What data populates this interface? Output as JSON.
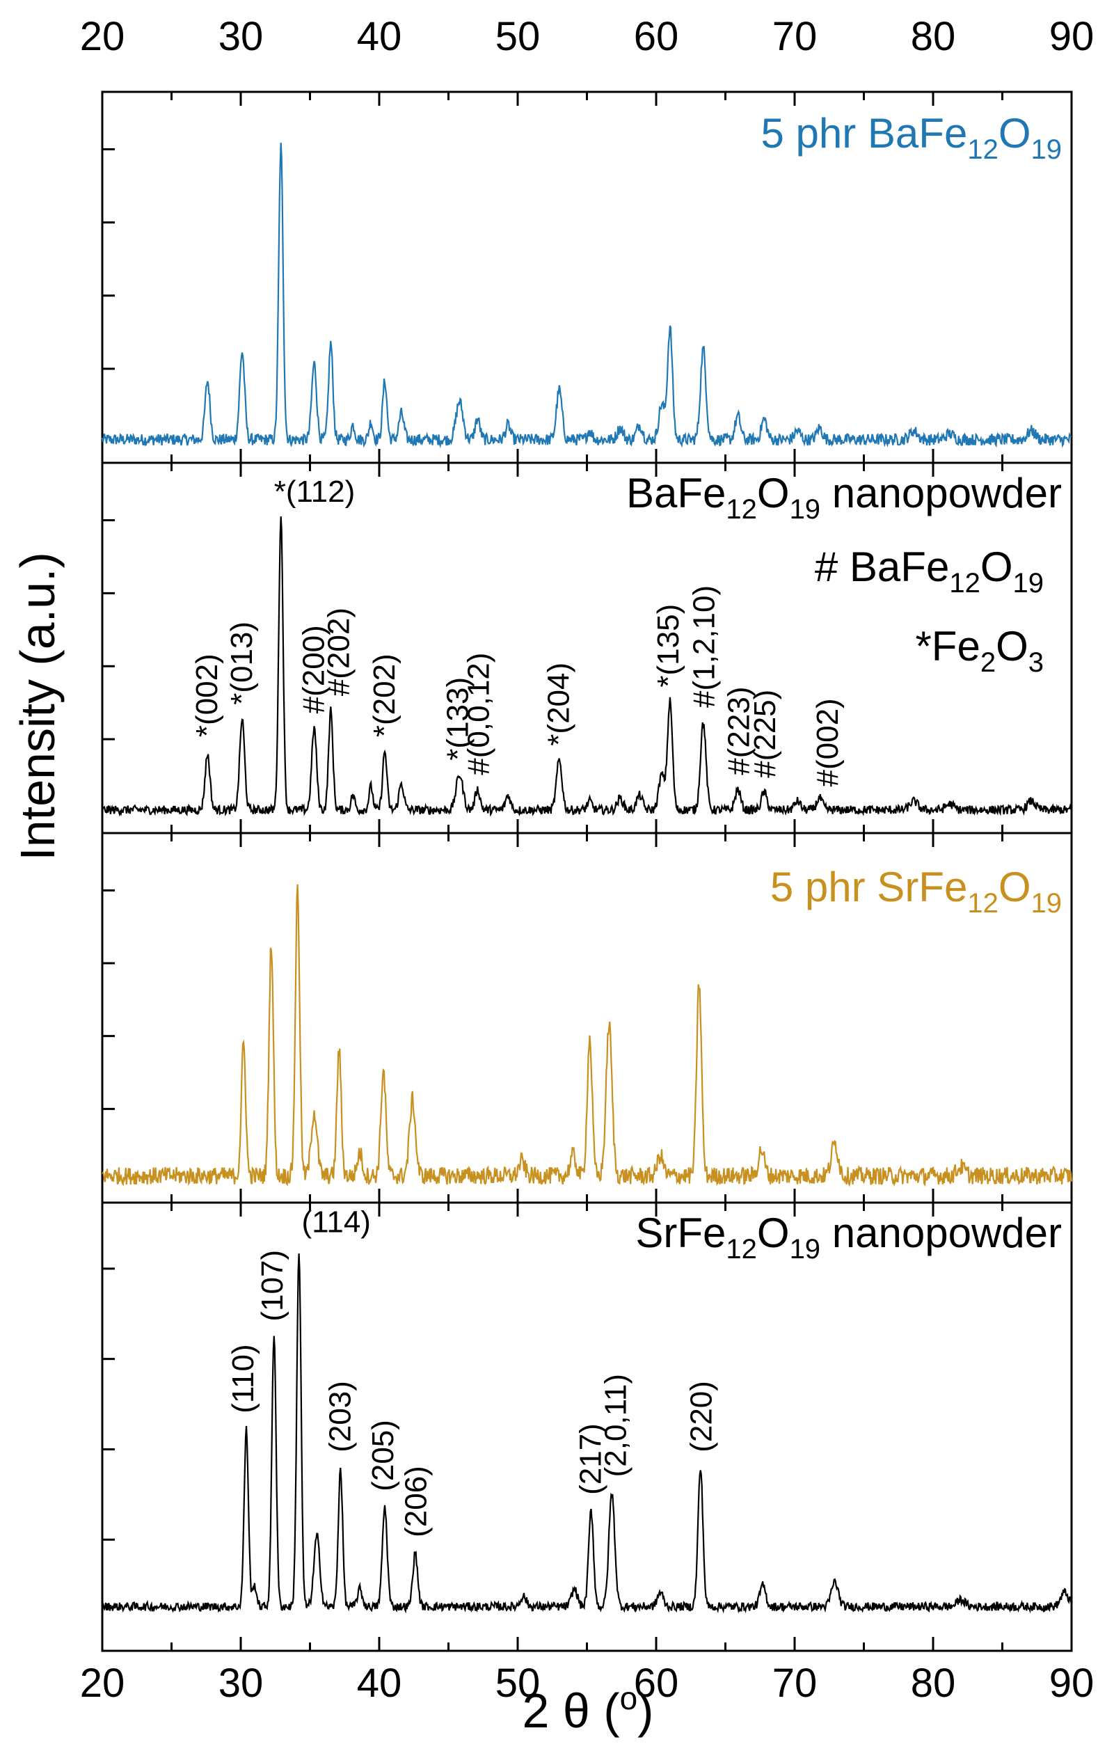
{
  "chart_data": {
    "type": "line",
    "x_axis": {
      "label": "2 θ (°)",
      "label_text": "2 θ (",
      "label_unit": "o",
      "label_close": ")",
      "range": [
        20,
        90
      ],
      "ticks": [
        20,
        30,
        40,
        50,
        60,
        70,
        80,
        90
      ]
    },
    "y_axis": {
      "label": "Intensity (a.u.)"
    },
    "panels": [
      {
        "name": "5 phr BaFe12O19",
        "label_parts": [
          "5 phr BaFe",
          "12",
          "O",
          "19"
        ],
        "color": "#1f77b4",
        "baseline": 0.04,
        "noise": 0.02,
        "peaks": [
          {
            "x": 27.6,
            "h": 0.2,
            "w": 0.25
          },
          {
            "x": 30.1,
            "h": 0.3,
            "w": 0.25
          },
          {
            "x": 32.9,
            "h": 1.0,
            "w": 0.22
          },
          {
            "x": 35.3,
            "h": 0.26,
            "w": 0.25
          },
          {
            "x": 36.5,
            "h": 0.33,
            "w": 0.22
          },
          {
            "x": 38.1,
            "h": 0.05,
            "w": 0.2
          },
          {
            "x": 39.4,
            "h": 0.06,
            "w": 0.2
          },
          {
            "x": 40.4,
            "h": 0.2,
            "w": 0.22
          },
          {
            "x": 41.6,
            "h": 0.09,
            "w": 0.25
          },
          {
            "x": 45.8,
            "h": 0.13,
            "w": 0.35
          },
          {
            "x": 47.1,
            "h": 0.07,
            "w": 0.25
          },
          {
            "x": 49.3,
            "h": 0.05,
            "w": 0.25
          },
          {
            "x": 53.0,
            "h": 0.17,
            "w": 0.28
          },
          {
            "x": 55.2,
            "h": 0.03,
            "w": 0.25
          },
          {
            "x": 57.4,
            "h": 0.04,
            "w": 0.3
          },
          {
            "x": 58.8,
            "h": 0.05,
            "w": 0.3
          },
          {
            "x": 60.4,
            "h": 0.12,
            "w": 0.3
          },
          {
            "x": 61.0,
            "h": 0.38,
            "w": 0.25
          },
          {
            "x": 63.4,
            "h": 0.31,
            "w": 0.28
          },
          {
            "x": 65.9,
            "h": 0.08,
            "w": 0.28
          },
          {
            "x": 67.8,
            "h": 0.07,
            "w": 0.28
          },
          {
            "x": 70.2,
            "h": 0.03,
            "w": 0.3
          },
          {
            "x": 71.8,
            "h": 0.04,
            "w": 0.3
          },
          {
            "x": 78.6,
            "h": 0.03,
            "w": 0.4
          },
          {
            "x": 81.2,
            "h": 0.02,
            "w": 0.4
          },
          {
            "x": 87.1,
            "h": 0.03,
            "w": 0.4
          }
        ],
        "annotations": []
      },
      {
        "name": "BaFe12O19 nanopowder",
        "label_parts": [
          "BaFe",
          "12",
          "O",
          "19",
          " nanopowder"
        ],
        "legend": [
          {
            "parts": [
              "# BaFe",
              "12",
              "O",
              "19"
            ]
          },
          {
            "parts": [
              "*Fe",
              "2",
              "O",
              "3"
            ]
          }
        ],
        "color": "#000000",
        "baseline": 0.04,
        "noise": 0.015,
        "peaks": [
          {
            "x": 27.6,
            "h": 0.19,
            "w": 0.25
          },
          {
            "x": 30.1,
            "h": 0.31,
            "w": 0.25
          },
          {
            "x": 32.9,
            "h": 1.0,
            "w": 0.22
          },
          {
            "x": 35.3,
            "h": 0.28,
            "w": 0.25
          },
          {
            "x": 36.5,
            "h": 0.34,
            "w": 0.22
          },
          {
            "x": 38.1,
            "h": 0.05,
            "w": 0.2
          },
          {
            "x": 39.4,
            "h": 0.08,
            "w": 0.2
          },
          {
            "x": 40.4,
            "h": 0.2,
            "w": 0.22
          },
          {
            "x": 41.6,
            "h": 0.09,
            "w": 0.25
          },
          {
            "x": 45.8,
            "h": 0.12,
            "w": 0.35
          },
          {
            "x": 47.1,
            "h": 0.07,
            "w": 0.25
          },
          {
            "x": 49.3,
            "h": 0.05,
            "w": 0.25
          },
          {
            "x": 53.0,
            "h": 0.17,
            "w": 0.28
          },
          {
            "x": 55.2,
            "h": 0.03,
            "w": 0.25
          },
          {
            "x": 57.4,
            "h": 0.04,
            "w": 0.3
          },
          {
            "x": 58.8,
            "h": 0.05,
            "w": 0.3
          },
          {
            "x": 60.4,
            "h": 0.12,
            "w": 0.3
          },
          {
            "x": 61.0,
            "h": 0.37,
            "w": 0.25
          },
          {
            "x": 63.4,
            "h": 0.3,
            "w": 0.28
          },
          {
            "x": 65.9,
            "h": 0.07,
            "w": 0.28
          },
          {
            "x": 67.8,
            "h": 0.06,
            "w": 0.28
          },
          {
            "x": 70.2,
            "h": 0.03,
            "w": 0.3
          },
          {
            "x": 71.8,
            "h": 0.04,
            "w": 0.3
          },
          {
            "x": 78.6,
            "h": 0.03,
            "w": 0.4
          },
          {
            "x": 81.2,
            "h": 0.02,
            "w": 0.4
          },
          {
            "x": 87.1,
            "h": 0.03,
            "w": 0.4
          }
        ],
        "annotations": [
          {
            "x": 27.6,
            "text": "*(002)",
            "h": 0.23,
            "rotate": true
          },
          {
            "x": 30.1,
            "text": "*(013)",
            "h": 0.34,
            "rotate": true
          },
          {
            "x": 32.9,
            "text": "*(112)",
            "h": 1.02,
            "rotate": false
          },
          {
            "x": 35.3,
            "text": "#(200)",
            "h": 0.31,
            "rotate": true
          },
          {
            "x": 37.1,
            "text": "#(202)",
            "h": 0.37,
            "rotate": true
          },
          {
            "x": 40.4,
            "text": "*(202)",
            "h": 0.23,
            "rotate": true
          },
          {
            "x": 45.7,
            "text": "*(133)",
            "h": 0.15,
            "rotate": true
          },
          {
            "x": 47.2,
            "text": "#(0,0,12)",
            "h": 0.1,
            "rotate": true
          },
          {
            "x": 53.0,
            "text": "*(204)",
            "h": 0.2,
            "rotate": true
          },
          {
            "x": 60.9,
            "text": "*(135)",
            "h": 0.4,
            "rotate": true
          },
          {
            "x": 63.5,
            "text": "#(1,2,10)",
            "h": 0.33,
            "rotate": true
          },
          {
            "x": 66.0,
            "text": "#(223)",
            "h": 0.1,
            "rotate": true
          },
          {
            "x": 67.9,
            "text": "#(225)",
            "h": 0.09,
            "rotate": true
          },
          {
            "x": 72.4,
            "text": "#(002)",
            "h": 0.06,
            "rotate": true
          }
        ]
      },
      {
        "name": "5 phr SrFe12O19",
        "label_parts": [
          "5 phr SrFe",
          "12",
          "O",
          "19"
        ],
        "color": "#c8901e",
        "baseline": 0.05,
        "noise": 0.03,
        "peaks": [
          {
            "x": 30.2,
            "h": 0.45,
            "w": 0.22
          },
          {
            "x": 32.2,
            "h": 0.8,
            "w": 0.22
          },
          {
            "x": 34.1,
            "h": 0.98,
            "w": 0.22
          },
          {
            "x": 35.3,
            "h": 0.22,
            "w": 0.3
          },
          {
            "x": 37.1,
            "h": 0.43,
            "w": 0.22
          },
          {
            "x": 38.6,
            "h": 0.08,
            "w": 0.25
          },
          {
            "x": 40.3,
            "h": 0.36,
            "w": 0.25
          },
          {
            "x": 42.4,
            "h": 0.26,
            "w": 0.3
          },
          {
            "x": 50.3,
            "h": 0.05,
            "w": 0.3
          },
          {
            "x": 54.0,
            "h": 0.07,
            "w": 0.3
          },
          {
            "x": 55.2,
            "h": 0.47,
            "w": 0.25
          },
          {
            "x": 56.6,
            "h": 0.52,
            "w": 0.3
          },
          {
            "x": 60.3,
            "h": 0.07,
            "w": 0.3
          },
          {
            "x": 63.1,
            "h": 0.66,
            "w": 0.25
          },
          {
            "x": 67.6,
            "h": 0.09,
            "w": 0.3
          },
          {
            "x": 72.9,
            "h": 0.11,
            "w": 0.35
          },
          {
            "x": 82.0,
            "h": 0.03,
            "w": 0.4
          }
        ],
        "annotations": []
      },
      {
        "name": "SrFe12O19 nanopowder",
        "label_parts": [
          "SrFe",
          "12",
          "O",
          "19",
          " nanopowder"
        ],
        "color": "#000000",
        "baseline": 0.08,
        "noise": 0.012,
        "peaks": [
          {
            "x": 30.4,
            "h": 0.5,
            "w": 0.22
          },
          {
            "x": 31.0,
            "h": 0.06,
            "w": 0.2
          },
          {
            "x": 32.4,
            "h": 0.77,
            "w": 0.22
          },
          {
            "x": 34.2,
            "h": 1.0,
            "w": 0.22
          },
          {
            "x": 35.5,
            "h": 0.2,
            "w": 0.3
          },
          {
            "x": 37.2,
            "h": 0.39,
            "w": 0.22
          },
          {
            "x": 38.6,
            "h": 0.05,
            "w": 0.25
          },
          {
            "x": 40.4,
            "h": 0.28,
            "w": 0.25
          },
          {
            "x": 42.6,
            "h": 0.15,
            "w": 0.25
          },
          {
            "x": 50.4,
            "h": 0.03,
            "w": 0.3
          },
          {
            "x": 54.1,
            "h": 0.05,
            "w": 0.3
          },
          {
            "x": 55.3,
            "h": 0.27,
            "w": 0.25
          },
          {
            "x": 56.8,
            "h": 0.32,
            "w": 0.3
          },
          {
            "x": 60.3,
            "h": 0.04,
            "w": 0.3
          },
          {
            "x": 63.2,
            "h": 0.39,
            "w": 0.25
          },
          {
            "x": 67.7,
            "h": 0.06,
            "w": 0.3
          },
          {
            "x": 72.9,
            "h": 0.07,
            "w": 0.35
          },
          {
            "x": 82.0,
            "h": 0.02,
            "w": 0.4
          },
          {
            "x": 89.5,
            "h": 0.04,
            "w": 0.4
          }
        ],
        "annotations": [
          {
            "x": 30.2,
            "text": "(110)",
            "h": 0.53,
            "rotate": true
          },
          {
            "x": 32.3,
            "text": "(107)",
            "h": 0.79,
            "rotate": true
          },
          {
            "x": 34.9,
            "text": "(114)",
            "h": 1.03,
            "rotate": false
          },
          {
            "x": 37.2,
            "text": "(203)",
            "h": 0.42,
            "rotate": true
          },
          {
            "x": 40.3,
            "text": "(205)",
            "h": 0.31,
            "rotate": true
          },
          {
            "x": 42.7,
            "text": "(206)",
            "h": 0.18,
            "rotate": true
          },
          {
            "x": 55.3,
            "text": "(217)",
            "h": 0.3,
            "rotate": true
          },
          {
            "x": 57.1,
            "text": "(2,0,11)",
            "h": 0.35,
            "rotate": true
          },
          {
            "x": 63.3,
            "text": "(220)",
            "h": 0.42,
            "rotate": true
          }
        ]
      }
    ]
  }
}
